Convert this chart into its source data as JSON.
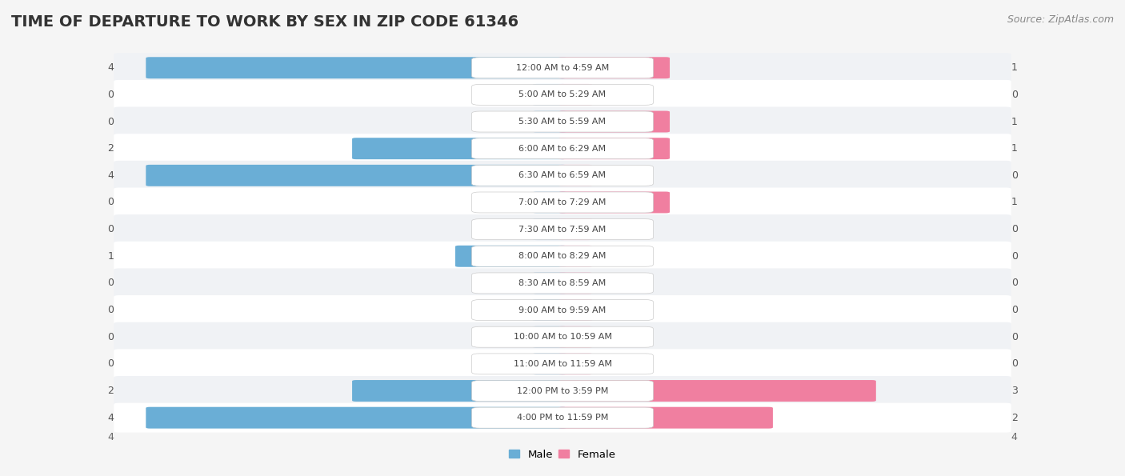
{
  "title": "TIME OF DEPARTURE TO WORK BY SEX IN ZIP CODE 61346",
  "source": "Source: ZipAtlas.com",
  "categories": [
    "12:00 AM to 4:59 AM",
    "5:00 AM to 5:29 AM",
    "5:30 AM to 5:59 AM",
    "6:00 AM to 6:29 AM",
    "6:30 AM to 6:59 AM",
    "7:00 AM to 7:29 AM",
    "7:30 AM to 7:59 AM",
    "8:00 AM to 8:29 AM",
    "8:30 AM to 8:59 AM",
    "9:00 AM to 9:59 AM",
    "10:00 AM to 10:59 AM",
    "11:00 AM to 11:59 AM",
    "12:00 PM to 3:59 PM",
    "4:00 PM to 11:59 PM"
  ],
  "male_values": [
    4,
    0,
    0,
    2,
    4,
    0,
    0,
    1,
    0,
    0,
    0,
    0,
    2,
    4
  ],
  "female_values": [
    1,
    0,
    1,
    1,
    0,
    1,
    0,
    0,
    0,
    0,
    0,
    0,
    3,
    2
  ],
  "male_color": "#6aaed6",
  "female_color": "#f07fa0",
  "male_color_light": "#aecde8",
  "female_color_light": "#f9b8cc",
  "male_label": "Male",
  "female_label": "Female",
  "axis_max": 4,
  "bg_even": "#f0f2f5",
  "bg_odd": "#ffffff",
  "title_fontsize": 14,
  "source_fontsize": 9,
  "label_fontsize": 8,
  "value_fontsize": 9
}
